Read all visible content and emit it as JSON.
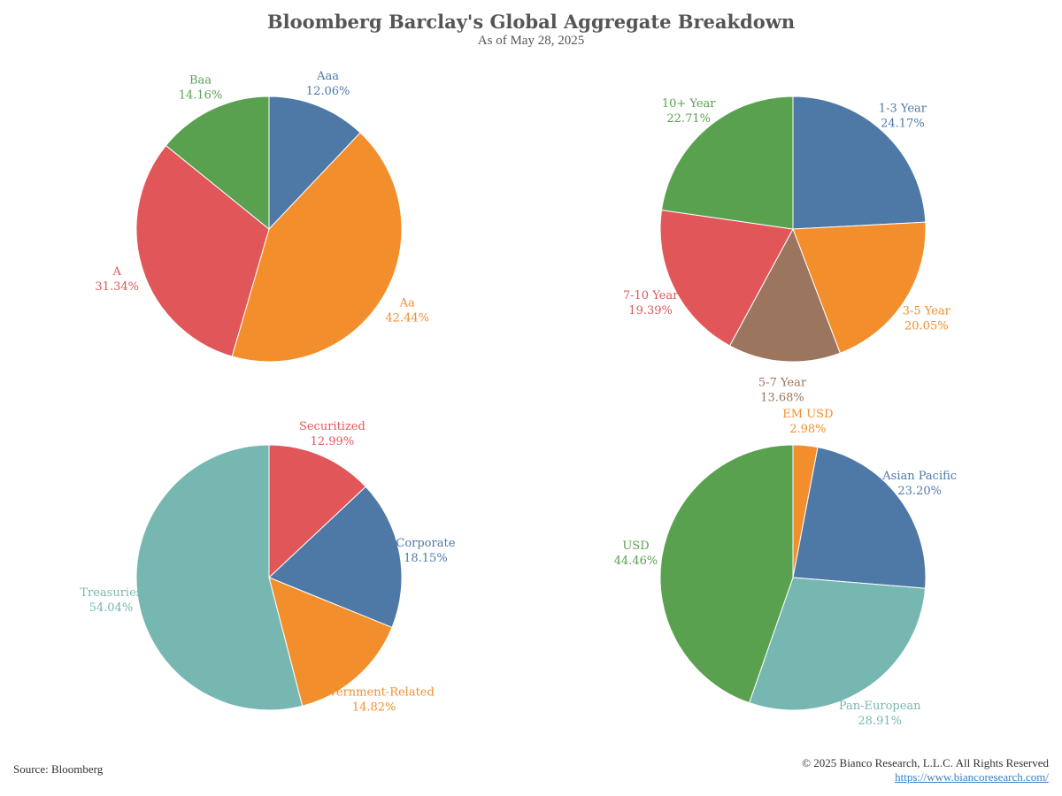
{
  "header": {
    "title": "Bloomberg Barclay's Global Aggregate Breakdown",
    "subtitle": "As of May 28, 2025"
  },
  "footer": {
    "source": "Source: Bloomberg",
    "copyright": "© 2025 Bianco Research, L.L.C. All Rights Reserved",
    "website": "https://www.biancoresearch.com/"
  },
  "chart_data": [
    {
      "type": "pie",
      "title": "",
      "slices": [
        {
          "label": "Aaa",
          "value": 12.06,
          "display": "12.06%",
          "color": "#4e79a7"
        },
        {
          "label": "Aa",
          "value": 42.44,
          "display": "42.44%",
          "color": "#f28e2b"
        },
        {
          "label": "A",
          "value": 31.34,
          "display": "31.34%",
          "color": "#e15759"
        },
        {
          "label": "Baa",
          "value": 14.16,
          "display": "14.16%",
          "color": "#59a14f"
        }
      ]
    },
    {
      "type": "pie",
      "title": "",
      "slices": [
        {
          "label": "1-3 Year",
          "value": 24.17,
          "display": "24.17%",
          "color": "#4e79a7"
        },
        {
          "label": "3-5 Year",
          "value": 20.05,
          "display": "20.05%",
          "color": "#f28e2b"
        },
        {
          "label": "5-7 Year",
          "value": 13.68,
          "display": "13.68%",
          "color": "#9c755f"
        },
        {
          "label": "7-10 Year",
          "value": 19.39,
          "display": "19.39%",
          "color": "#e15759"
        },
        {
          "label": "10+ Year",
          "value": 22.71,
          "display": "22.71%",
          "color": "#59a14f"
        }
      ]
    },
    {
      "type": "pie",
      "title": "",
      "slices": [
        {
          "label": "Securitized",
          "value": 12.99,
          "display": "12.99%",
          "color": "#e15759"
        },
        {
          "label": "Corporate",
          "value": 18.15,
          "display": "18.15%",
          "color": "#4e79a7"
        },
        {
          "label": "Government-Related",
          "value": 14.82,
          "display": "14.82%",
          "color": "#f28e2b"
        },
        {
          "label": "Treasuries",
          "value": 54.04,
          "display": "54.04%",
          "color": "#76b7b2"
        }
      ]
    },
    {
      "type": "pie",
      "title": "",
      "slices": [
        {
          "label": "EM USD",
          "value": 2.98,
          "display": "2.98%",
          "color": "#f28e2b"
        },
        {
          "label": "Asian Pacific",
          "value": 23.2,
          "display": "23.20%",
          "color": "#4e79a7"
        },
        {
          "label": "Pan-European",
          "value": 28.91,
          "display": "28.91%",
          "color": "#76b7b2"
        },
        {
          "label": "USD",
          "value": 44.46,
          "display": "44.46%",
          "color": "#59a14f"
        }
      ]
    }
  ]
}
